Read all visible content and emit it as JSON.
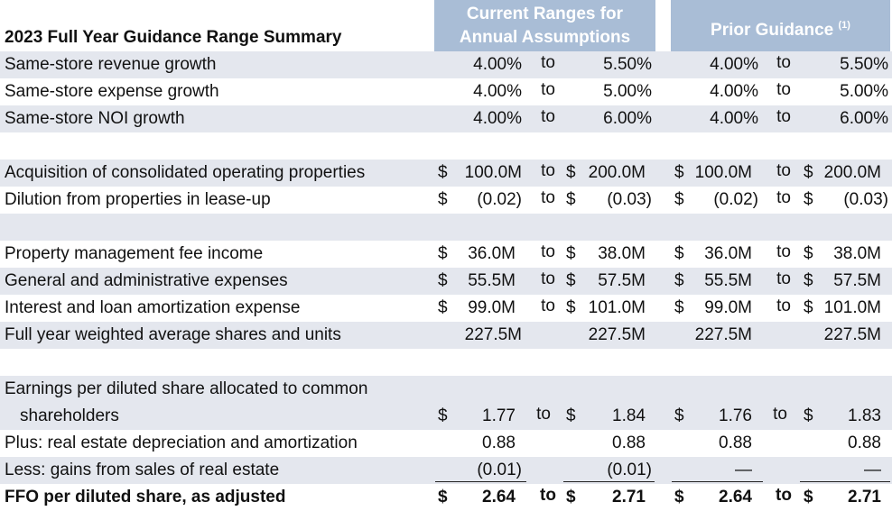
{
  "header": {
    "title": "2023 Full Year Guidance Range Summary",
    "current_line1": "Current Ranges for",
    "current_line2": "Annual Assumptions",
    "prior_label": "Prior Guidance",
    "prior_footnote": "(1)"
  },
  "rows": {
    "r1": {
      "label": "Same-store revenue growth",
      "c_lo": "4.00%",
      "to1": "to",
      "c_hi": "5.50%",
      "p_lo": "4.00%",
      "to2": "to",
      "p_hi": "5.50%"
    },
    "r2": {
      "label": "Same-store expense growth",
      "c_lo": "4.00%",
      "to1": "to",
      "c_hi": "5.00%",
      "p_lo": "4.00%",
      "to2": "to",
      "p_hi": "5.00%"
    },
    "r3": {
      "label": "Same-store NOI growth",
      "c_lo": "4.00%",
      "to1": "to",
      "c_hi": "6.00%",
      "p_lo": "4.00%",
      "to2": "to",
      "p_hi": "6.00%"
    },
    "r4": {
      "label": "Acquisition of consolidated operating properties",
      "d": "$",
      "c_lo": "100.0M",
      "to1": "to",
      "c_hi": "200.0M",
      "p_lo": "100.0M",
      "to2": "to",
      "p_hi": "200.0M"
    },
    "r5": {
      "label": "Dilution from properties in lease-up",
      "d": "$",
      "c_lo": "(0.02)",
      "to1": "to",
      "c_hi": "(0.03)",
      "p_lo": "(0.02)",
      "to2": "to",
      "p_hi": "(0.03)"
    },
    "r6": {
      "label": "Property management fee income",
      "d": "$",
      "c_lo": "36.0M",
      "to1": "to",
      "c_hi": "38.0M",
      "p_lo": "36.0M",
      "to2": "to",
      "p_hi": "38.0M"
    },
    "r7": {
      "label": "General and administrative expenses",
      "d": "$",
      "c_lo": "55.5M",
      "to1": "to",
      "c_hi": "57.5M",
      "p_lo": "55.5M",
      "to2": "to",
      "p_hi": "57.5M"
    },
    "r8": {
      "label": "Interest and loan amortization expense",
      "d": "$",
      "c_lo": "99.0M",
      "to1": "to",
      "c_hi": "101.0M",
      "p_lo": "99.0M",
      "to2": "to",
      "p_hi": "101.0M"
    },
    "r9": {
      "label": "Full year weighted average shares and units",
      "c_lo": "227.5M",
      "c_hi": "227.5M",
      "p_lo": "227.5M",
      "p_hi": "227.5M"
    },
    "r10a": {
      "label": "Earnings per diluted share allocated to common"
    },
    "r10": {
      "label": "shareholders",
      "d": "$",
      "c_lo": "1.77",
      "to1": "to",
      "c_hi": "1.84",
      "p_lo": "1.76",
      "to2": "to",
      "p_hi": "1.83"
    },
    "r11": {
      "label": "Plus: real estate depreciation and amortization",
      "c_lo": "0.88",
      "c_hi": "0.88",
      "p_lo": "0.88",
      "p_hi": "0.88"
    },
    "r12": {
      "label": "Less: gains from sales of real estate",
      "c_lo": "(0.01)",
      "c_hi": "(0.01)",
      "p_lo": "—",
      "p_hi": "—"
    },
    "r13": {
      "label": "FFO per diluted share, as adjusted",
      "d": "$",
      "c_lo": "2.64",
      "to1": "to",
      "c_hi": "2.71",
      "p_lo": "2.64",
      "to2": "to",
      "p_hi": "2.71"
    }
  },
  "colors": {
    "header_bg": "#a9bdd6",
    "band_bg": "#e4e7ee"
  }
}
